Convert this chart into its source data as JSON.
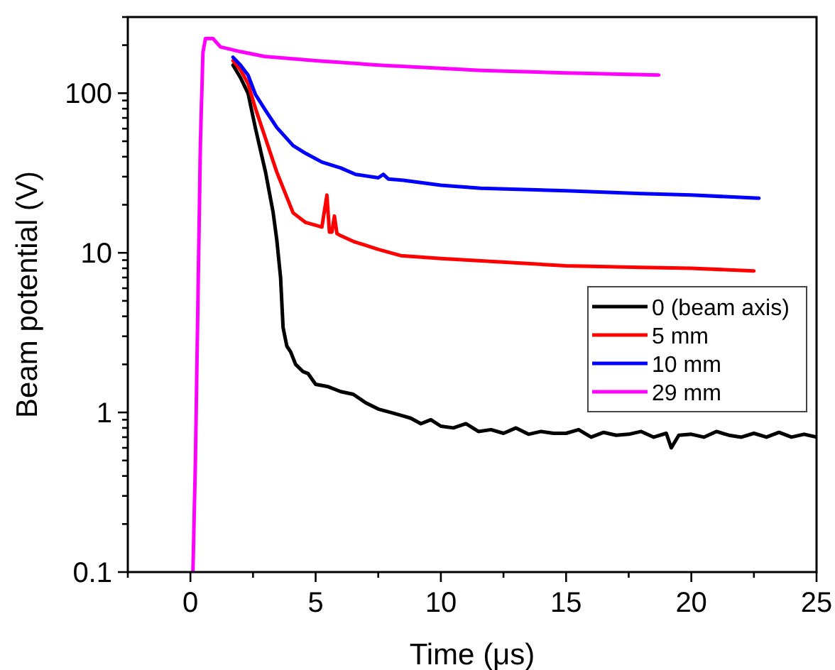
{
  "chart_data": {
    "type": "line",
    "xlabel": "Time (μs)",
    "ylabel": "Beam potential (V)",
    "log": "y",
    "legend": "right",
    "grid": false,
    "line_style": "solid",
    "marker": "none",
    "xlim": [
      -2.5,
      25
    ],
    "xticks": [
      {
        "value": -2.5,
        "label": null
      },
      0,
      {
        "value": 2.5,
        "label": null
      },
      5,
      {
        "value": 7.5,
        "label": null
      },
      10,
      {
        "value": 12.5,
        "label": null
      },
      15,
      {
        "value": 17.5,
        "label": null
      },
      20,
      {
        "value": 22.5,
        "label": null
      },
      25
    ],
    "ylim": [
      0.1,
      300
    ],
    "yticks": [
      0.1,
      {
        "value": 0.2,
        "label": null
      },
      {
        "value": 0.3,
        "label": null
      },
      {
        "value": 0.4,
        "label": null
      },
      {
        "value": 0.5,
        "label": null
      },
      {
        "value": 0.6,
        "label": null
      },
      {
        "value": 0.7,
        "label": null
      },
      {
        "value": 0.8,
        "label": null
      },
      {
        "value": 0.9,
        "label": null
      },
      1,
      {
        "value": 2,
        "label": null
      },
      {
        "value": 3,
        "label": null
      },
      {
        "value": 4,
        "label": null
      },
      {
        "value": 5,
        "label": null
      },
      {
        "value": 6,
        "label": null
      },
      {
        "value": 7,
        "label": null
      },
      {
        "value": 8,
        "label": null
      },
      {
        "value": 9,
        "label": null
      },
      10,
      {
        "value": 20,
        "label": null
      },
      {
        "value": 30,
        "label": null
      },
      {
        "value": 40,
        "label": null
      },
      {
        "value": 50,
        "label": null
      },
      {
        "value": 60,
        "label": null
      },
      {
        "value": 70,
        "label": null
      },
      {
        "value": 80,
        "label": null
      },
      {
        "value": 90,
        "label": null
      },
      100,
      {
        "value": 200,
        "label": null
      },
      {
        "value": 300,
        "label": null
      }
    ],
    "series": [
      {
        "name": "0 (beam axis)",
        "color": "#000000",
        "x": [
          1.7,
          2,
          2.3,
          2.6,
          3,
          3.3,
          3.45,
          3.6,
          3.7,
          3.85,
          4,
          4.2,
          4.5,
          4.7,
          5,
          5.5,
          6,
          6.5,
          7,
          7.5,
          8,
          8.5,
          8.8,
          9.2,
          9.6,
          10,
          10.5,
          11,
          11.5,
          12,
          12.5,
          13,
          13.5,
          14,
          14.5,
          15,
          15.5,
          16,
          16.5,
          17,
          17.5,
          18,
          18.5,
          19,
          19.2,
          19.5,
          20,
          20.5,
          21,
          21.5,
          22,
          22.5,
          23,
          23.5,
          24,
          24.5,
          25
        ],
        "values": [
          150,
          125,
          100,
          60,
          32,
          18,
          12,
          7,
          3.4,
          2.6,
          2.4,
          2.0,
          1.8,
          1.75,
          1.5,
          1.45,
          1.35,
          1.3,
          1.15,
          1.05,
          1.0,
          0.95,
          0.92,
          0.85,
          0.9,
          0.82,
          0.8,
          0.85,
          0.76,
          0.78,
          0.74,
          0.8,
          0.73,
          0.76,
          0.74,
          0.74,
          0.78,
          0.7,
          0.75,
          0.72,
          0.73,
          0.76,
          0.7,
          0.74,
          0.6,
          0.72,
          0.73,
          0.7,
          0.76,
          0.72,
          0.7,
          0.74,
          0.7,
          0.75,
          0.7,
          0.73,
          0.7
        ]
      },
      {
        "name": "5 mm",
        "color": "#ff0000",
        "x": [
          1.7,
          2,
          2.3,
          2.6,
          3,
          3.45,
          4.1,
          4.6,
          5.25,
          5.45,
          5.55,
          5.65,
          5.75,
          5.85,
          6,
          6.5,
          7.5,
          8.4,
          10,
          11.6,
          15,
          18,
          20,
          22.5
        ],
        "values": [
          160,
          140,
          115,
          80,
          52,
          32,
          17.8,
          15.5,
          14.5,
          23,
          13.5,
          13.5,
          17,
          13.2,
          12.8,
          11.8,
          10.5,
          9.6,
          9.2,
          8.9,
          8.3,
          8.1,
          8.0,
          7.7
        ]
      },
      {
        "name": "10 mm",
        "color": "#0000ff",
        "x": [
          1.7,
          2,
          2.3,
          2.6,
          3,
          3.45,
          4.1,
          4.6,
          5.25,
          6,
          6.6,
          7.5,
          7.7,
          7.9,
          8.5,
          10,
          11.6,
          15,
          18,
          20,
          22.7
        ],
        "values": [
          168,
          150,
          130,
          98,
          78,
          61,
          47,
          42,
          37,
          34,
          31,
          29.5,
          31,
          29,
          28.5,
          26.5,
          25.4,
          24.5,
          23.5,
          23,
          22
        ]
      },
      {
        "name": "29 mm",
        "color": "#ff00ff",
        "x": [
          0.1,
          0.2,
          0.3,
          0.4,
          0.5,
          0.6,
          0.9,
          1.2,
          1.5,
          2,
          2.95,
          5,
          7.5,
          10,
          11.6,
          15,
          18.7
        ],
        "values": [
          0.1,
          0.5,
          5,
          50,
          180,
          220,
          220,
          195,
          190,
          182,
          170,
          160,
          150,
          143,
          139,
          134,
          130
        ]
      }
    ]
  }
}
